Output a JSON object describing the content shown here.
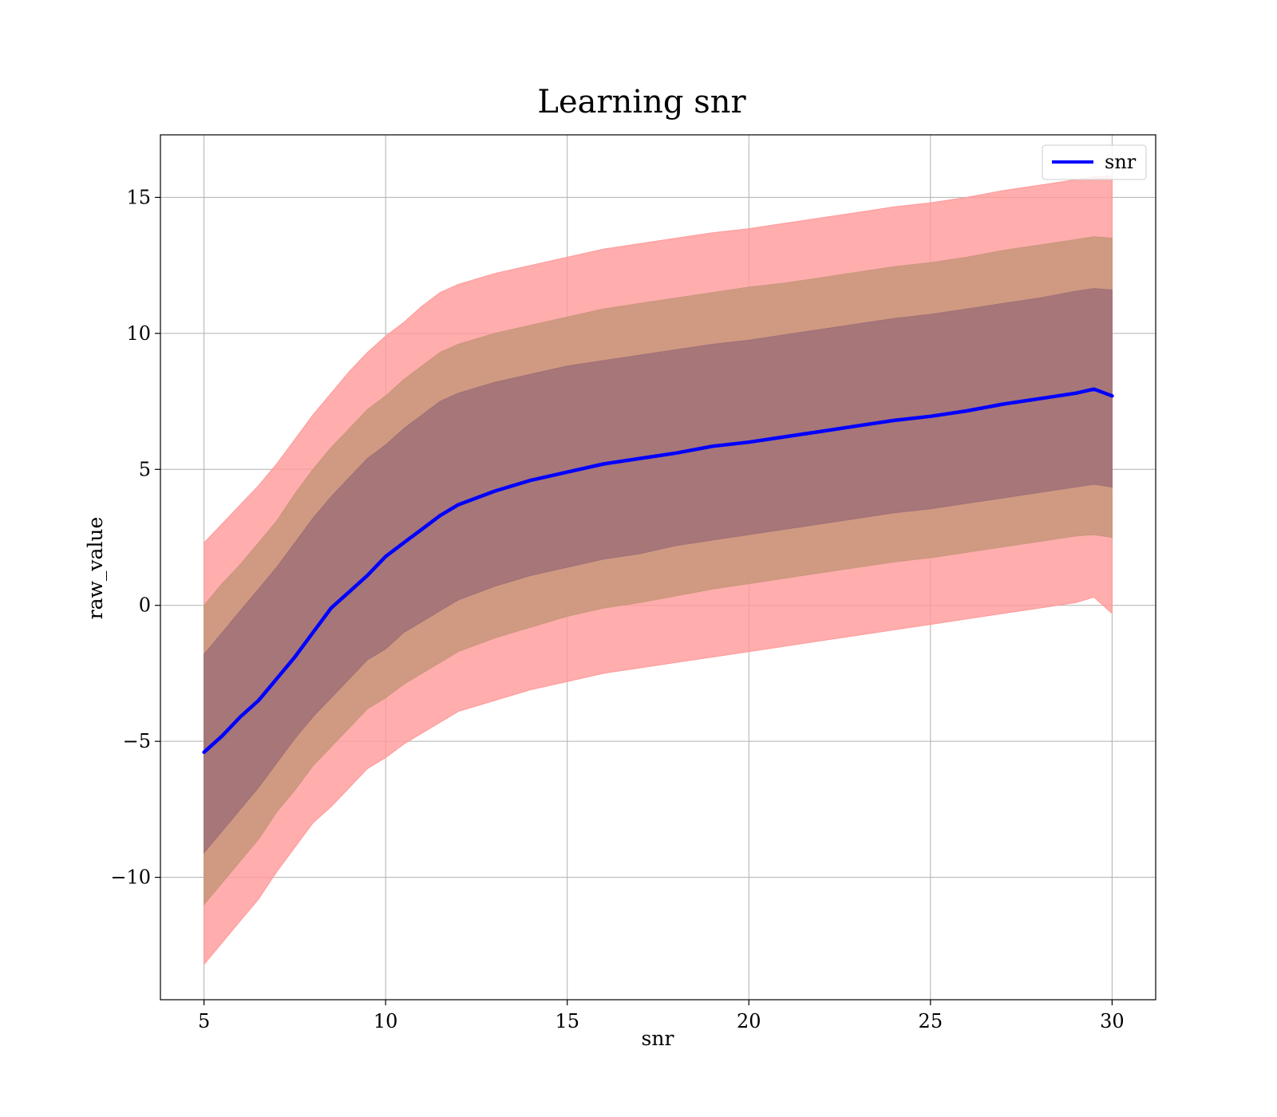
{
  "chart_data": {
    "type": "area",
    "title": "Learning snr",
    "xlabel": "snr",
    "ylabel": "raw_value",
    "xlim": [
      3.8,
      31.2
    ],
    "ylim": [
      -14.5,
      17.3
    ],
    "xticks": [
      5,
      10,
      15,
      20,
      25,
      30
    ],
    "yticks": [
      -10,
      -5,
      0,
      5,
      10,
      15
    ],
    "ytick_labels": [
      "−10",
      "−5",
      "0",
      "5",
      "10",
      "15"
    ],
    "grid": true,
    "legend": {
      "position": "top-right",
      "entries": [
        "snr"
      ]
    },
    "x": [
      5,
      5.5,
      6,
      6.5,
      7,
      7.5,
      8,
      8.5,
      9,
      9.5,
      10,
      10.5,
      11,
      11.5,
      12,
      13,
      14,
      15,
      16,
      17,
      18,
      19,
      20,
      21,
      22,
      23,
      24,
      25,
      26,
      27,
      28,
      29,
      29.5,
      30
    ],
    "series": [
      {
        "name": "snr",
        "color": "#0000ff",
        "values": [
          -5.4,
          -4.8,
          -4.1,
          -3.5,
          -2.7,
          -1.9,
          -1.0,
          -0.1,
          0.5,
          1.1,
          1.8,
          2.3,
          2.8,
          3.3,
          3.7,
          4.2,
          4.6,
          4.9,
          5.2,
          5.4,
          5.6,
          5.85,
          6.0,
          6.2,
          6.4,
          6.6,
          6.8,
          6.95,
          7.15,
          7.4,
          7.6,
          7.8,
          7.95,
          7.7
        ]
      }
    ],
    "bands": [
      {
        "level": "outer",
        "color": "#ff9999",
        "lower": [
          -13.2,
          -12.4,
          -11.6,
          -10.8,
          -9.8,
          -8.9,
          -8.0,
          -7.4,
          -6.7,
          -6.0,
          -5.6,
          -5.1,
          -4.7,
          -4.3,
          -3.9,
          -3.5,
          -3.1,
          -2.8,
          -2.5,
          -2.3,
          -2.1,
          -1.9,
          -1.7,
          -1.5,
          -1.3,
          -1.1,
          -0.9,
          -0.7,
          -0.5,
          -0.3,
          -0.1,
          0.1,
          0.3,
          -0.3
        ],
        "upper": [
          2.3,
          3.0,
          3.7,
          4.4,
          5.2,
          6.1,
          7.0,
          7.8,
          8.6,
          9.3,
          9.9,
          10.4,
          11.0,
          11.5,
          11.8,
          12.2,
          12.5,
          12.8,
          13.1,
          13.3,
          13.5,
          13.7,
          13.85,
          14.05,
          14.25,
          14.45,
          14.65,
          14.8,
          15.0,
          15.25,
          15.45,
          15.65,
          15.75,
          15.8
        ]
      },
      {
        "level": "middle",
        "color": "#c8967a",
        "lower": [
          -11.0,
          -10.2,
          -9.4,
          -8.6,
          -7.6,
          -6.8,
          -5.9,
          -5.2,
          -4.5,
          -3.8,
          -3.4,
          -2.9,
          -2.5,
          -2.1,
          -1.7,
          -1.2,
          -0.8,
          -0.4,
          -0.1,
          0.1,
          0.35,
          0.6,
          0.8,
          1.0,
          1.2,
          1.4,
          1.6,
          1.75,
          1.95,
          2.15,
          2.35,
          2.55,
          2.6,
          2.5
        ],
        "upper": [
          0.0,
          0.8,
          1.5,
          2.3,
          3.1,
          4.1,
          5.0,
          5.8,
          6.5,
          7.2,
          7.7,
          8.3,
          8.8,
          9.3,
          9.6,
          10.0,
          10.3,
          10.6,
          10.9,
          11.1,
          11.3,
          11.5,
          11.7,
          11.85,
          12.05,
          12.25,
          12.45,
          12.6,
          12.8,
          13.05,
          13.25,
          13.45,
          13.55,
          13.5
        ]
      },
      {
        "level": "inner",
        "color": "#a07078",
        "lower": [
          -9.1,
          -8.3,
          -7.5,
          -6.7,
          -5.8,
          -4.9,
          -4.1,
          -3.4,
          -2.7,
          -2.0,
          -1.6,
          -1.0,
          -0.6,
          -0.2,
          0.2,
          0.7,
          1.1,
          1.4,
          1.7,
          1.9,
          2.2,
          2.4,
          2.6,
          2.8,
          3.0,
          3.2,
          3.4,
          3.55,
          3.75,
          3.95,
          4.15,
          4.35,
          4.45,
          4.35
        ],
        "upper": [
          -1.8,
          -1.0,
          -0.2,
          0.6,
          1.4,
          2.3,
          3.2,
          4.0,
          4.7,
          5.4,
          5.9,
          6.5,
          7.0,
          7.5,
          7.8,
          8.2,
          8.5,
          8.8,
          9.0,
          9.2,
          9.4,
          9.6,
          9.75,
          9.95,
          10.15,
          10.35,
          10.55,
          10.7,
          10.9,
          11.1,
          11.3,
          11.55,
          11.65,
          11.6
        ]
      }
    ]
  }
}
